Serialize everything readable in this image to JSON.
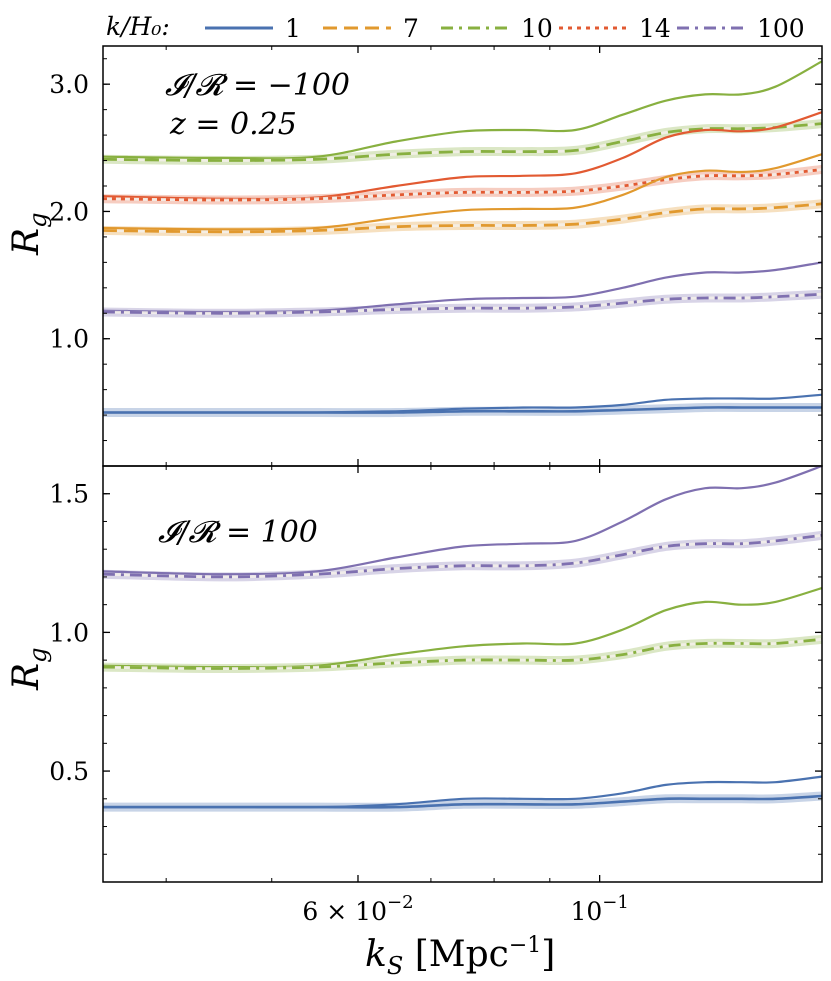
{
  "chart_data": {
    "type": "line",
    "xscale": "log",
    "xlim": [
      0.035,
      0.16
    ],
    "xlabel": "k_S  [Mpc^-1]",
    "xticks": [
      {
        "value": 0.06,
        "label": "6 × 10",
        "exp": "−2"
      },
      {
        "value": 0.1,
        "label": "10",
        "exp": "−1"
      }
    ],
    "legend": {
      "title": "k/H₀:",
      "entries": [
        {
          "label": "1",
          "color": "#4c72b0",
          "dash": "solid"
        },
        {
          "label": "7",
          "color": "#dd8452",
          "dash": "dashed"
        },
        {
          "label": "10",
          "color": "#55a868",
          "dash": "dashdot"
        },
        {
          "label": "14",
          "color": "#c44e52",
          "dash": "dotted"
        },
        {
          "label": "100",
          "color": "#8172b3",
          "dash": "dashdot"
        }
      ]
    },
    "colors": {
      "1": "#4a72b0",
      "7": "#e1992e",
      "10": "#88b040",
      "14": "#e25a32",
      "100": "#7f70b0"
    },
    "panels": [
      {
        "ylabel": "R_g",
        "ylim": [
          0.0,
          3.3
        ],
        "yticks": [
          {
            "value": 1.0,
            "label": "1.0"
          },
          {
            "value": 2.0,
            "label": "2.0"
          },
          {
            "value": 3.0,
            "label": "3.0"
          }
        ],
        "annotations": [
          "𝓘/𝓡 = −100",
          "z = 0.25"
        ],
        "series": [
          {
            "name": "10",
            "style": "solid-thin",
            "x": [
              0.035,
              0.045,
              0.055,
              0.065,
              0.075,
              0.085,
              0.095,
              0.105,
              0.115,
              0.125,
              0.135,
              0.145,
              0.16
            ],
            "y": [
              2.43,
              2.42,
              2.43,
              2.55,
              2.63,
              2.64,
              2.64,
              2.76,
              2.87,
              2.92,
              2.92,
              2.98,
              3.18
            ]
          },
          {
            "name": "10",
            "style": "dashed-band",
            "x": [
              0.035,
              0.045,
              0.055,
              0.065,
              0.075,
              0.085,
              0.095,
              0.105,
              0.115,
              0.125,
              0.135,
              0.145,
              0.16
            ],
            "y": [
              2.41,
              2.4,
              2.41,
              2.45,
              2.47,
              2.47,
              2.48,
              2.55,
              2.62,
              2.65,
              2.65,
              2.66,
              2.69
            ]
          },
          {
            "name": "14",
            "style": "solid-thin",
            "x": [
              0.035,
              0.045,
              0.055,
              0.065,
              0.075,
              0.085,
              0.095,
              0.105,
              0.115,
              0.125,
              0.135,
              0.145,
              0.16
            ],
            "y": [
              2.12,
              2.1,
              2.11,
              2.2,
              2.27,
              2.28,
              2.3,
              2.42,
              2.58,
              2.64,
              2.63,
              2.66,
              2.78
            ]
          },
          {
            "name": "14",
            "style": "dotted-band",
            "x": [
              0.035,
              0.045,
              0.055,
              0.065,
              0.075,
              0.085,
              0.095,
              0.105,
              0.115,
              0.125,
              0.135,
              0.145,
              0.16
            ],
            "y": [
              2.1,
              2.09,
              2.1,
              2.13,
              2.15,
              2.15,
              2.16,
              2.2,
              2.25,
              2.28,
              2.28,
              2.29,
              2.33
            ]
          },
          {
            "name": "7",
            "style": "solid-thin",
            "x": [
              0.035,
              0.045,
              0.055,
              0.065,
              0.075,
              0.085,
              0.095,
              0.105,
              0.115,
              0.125,
              0.135,
              0.145,
              0.16
            ],
            "y": [
              1.87,
              1.86,
              1.87,
              1.95,
              2.01,
              2.02,
              2.03,
              2.13,
              2.27,
              2.32,
              2.31,
              2.34,
              2.45
            ]
          },
          {
            "name": "7",
            "style": "dashed-band",
            "x": [
              0.035,
              0.045,
              0.055,
              0.065,
              0.075,
              0.085,
              0.095,
              0.105,
              0.115,
              0.125,
              0.135,
              0.145,
              0.16
            ],
            "y": [
              1.85,
              1.84,
              1.85,
              1.88,
              1.89,
              1.89,
              1.9,
              1.94,
              1.99,
              2.02,
              2.02,
              2.03,
              2.06
            ]
          },
          {
            "name": "100",
            "style": "solid-thin",
            "x": [
              0.035,
              0.045,
              0.055,
              0.065,
              0.075,
              0.085,
              0.095,
              0.105,
              0.115,
              0.125,
              0.135,
              0.145,
              0.16
            ],
            "y": [
              1.22,
              1.21,
              1.22,
              1.27,
              1.31,
              1.32,
              1.33,
              1.4,
              1.48,
              1.52,
              1.52,
              1.54,
              1.6
            ]
          },
          {
            "name": "100",
            "style": "dashdot-band",
            "x": [
              0.035,
              0.045,
              0.055,
              0.065,
              0.075,
              0.085,
              0.095,
              0.105,
              0.115,
              0.125,
              0.135,
              0.145,
              0.16
            ],
            "y": [
              1.21,
              1.2,
              1.21,
              1.23,
              1.24,
              1.24,
              1.25,
              1.28,
              1.31,
              1.32,
              1.32,
              1.33,
              1.35
            ]
          },
          {
            "name": "1",
            "style": "solid-thin",
            "x": [
              0.035,
              0.045,
              0.055,
              0.065,
              0.075,
              0.085,
              0.095,
              0.105,
              0.115,
              0.125,
              0.135,
              0.145,
              0.16
            ],
            "y": [
              0.42,
              0.42,
              0.42,
              0.43,
              0.45,
              0.46,
              0.46,
              0.48,
              0.52,
              0.53,
              0.53,
              0.53,
              0.56
            ]
          },
          {
            "name": "1",
            "style": "solid-band",
            "x": [
              0.035,
              0.045,
              0.055,
              0.065,
              0.075,
              0.085,
              0.095,
              0.105,
              0.115,
              0.125,
              0.135,
              0.145,
              0.16
            ],
            "y": [
              0.42,
              0.42,
              0.42,
              0.42,
              0.43,
              0.43,
              0.43,
              0.44,
              0.45,
              0.46,
              0.46,
              0.46,
              0.46
            ]
          }
        ]
      },
      {
        "ylabel": "R_g",
        "ylim": [
          0.1,
          1.6
        ],
        "yticks": [
          {
            "value": 0.5,
            "label": "0.5"
          },
          {
            "value": 1.0,
            "label": "1.0"
          },
          {
            "value": 1.5,
            "label": "1.5"
          }
        ],
        "annotations": [
          "𝓘/𝓡 = 100"
        ],
        "series": [
          {
            "name": "100",
            "style": "solid-thin",
            "x": [
              0.035,
              0.045,
              0.055,
              0.065,
              0.075,
              0.085,
              0.095,
              0.105,
              0.115,
              0.125,
              0.135,
              0.145,
              0.16
            ],
            "y": [
              1.22,
              1.21,
              1.22,
              1.27,
              1.31,
              1.32,
              1.33,
              1.4,
              1.48,
              1.52,
              1.52,
              1.54,
              1.6
            ]
          },
          {
            "name": "100",
            "style": "dashdot-band",
            "x": [
              0.035,
              0.045,
              0.055,
              0.065,
              0.075,
              0.085,
              0.095,
              0.105,
              0.115,
              0.125,
              0.135,
              0.145,
              0.16
            ],
            "y": [
              1.21,
              1.2,
              1.21,
              1.23,
              1.24,
              1.24,
              1.25,
              1.28,
              1.31,
              1.32,
              1.32,
              1.33,
              1.35
            ]
          },
          {
            "name": "10",
            "style": "solid-thin",
            "x": [
              0.035,
              0.045,
              0.055,
              0.065,
              0.075,
              0.085,
              0.095,
              0.105,
              0.115,
              0.125,
              0.135,
              0.145,
              0.16
            ],
            "y": [
              0.88,
              0.875,
              0.88,
              0.92,
              0.95,
              0.96,
              0.96,
              1.01,
              1.08,
              1.11,
              1.1,
              1.11,
              1.16
            ]
          },
          {
            "name": "10",
            "style": "dashdot-band",
            "x": [
              0.035,
              0.045,
              0.055,
              0.065,
              0.075,
              0.085,
              0.095,
              0.105,
              0.115,
              0.125,
              0.135,
              0.145,
              0.16
            ],
            "y": [
              0.875,
              0.87,
              0.875,
              0.89,
              0.9,
              0.9,
              0.9,
              0.92,
              0.95,
              0.96,
              0.96,
              0.96,
              0.975
            ]
          },
          {
            "name": "1",
            "style": "solid-thin",
            "x": [
              0.035,
              0.045,
              0.055,
              0.065,
              0.075,
              0.085,
              0.095,
              0.105,
              0.115,
              0.125,
              0.135,
              0.145,
              0.16
            ],
            "y": [
              0.37,
              0.37,
              0.37,
              0.38,
              0.4,
              0.4,
              0.4,
              0.42,
              0.45,
              0.46,
              0.46,
              0.46,
              0.48
            ]
          },
          {
            "name": "1",
            "style": "solid-band",
            "x": [
              0.035,
              0.045,
              0.055,
              0.065,
              0.075,
              0.085,
              0.095,
              0.105,
              0.115,
              0.125,
              0.135,
              0.145,
              0.16
            ],
            "y": [
              0.37,
              0.37,
              0.37,
              0.37,
              0.38,
              0.38,
              0.38,
              0.39,
              0.4,
              0.4,
              0.4,
              0.4,
              0.41
            ]
          }
        ]
      }
    ]
  }
}
